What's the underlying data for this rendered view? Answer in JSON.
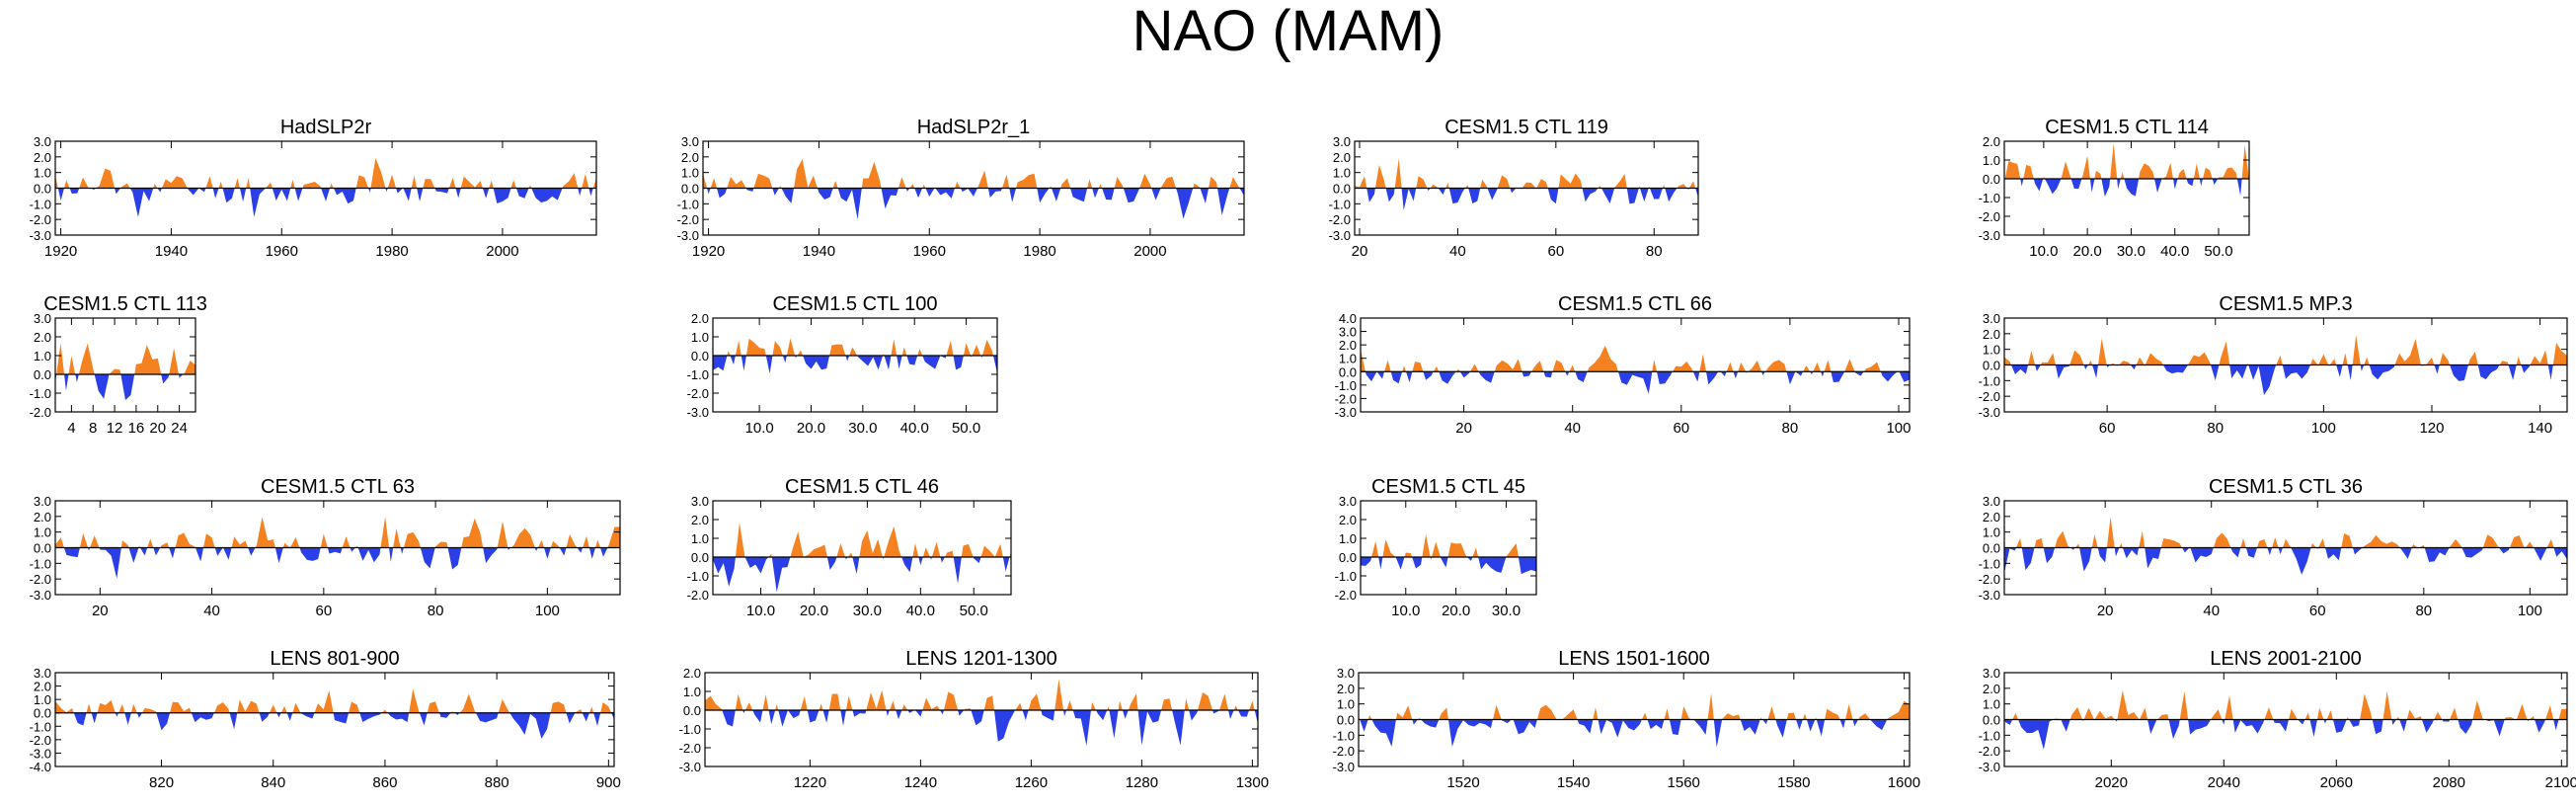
{
  "figure": {
    "title": "NAO (MAM)"
  },
  "colors": {
    "positive": "#f58220",
    "negative": "#2b3fe8",
    "axis": "#000000",
    "zero_line": "#000000"
  },
  "chart_data": [
    {
      "type": "area",
      "title": "HadSLP2r",
      "xlabel": "",
      "ylabel": "",
      "xlim": [
        1919,
        2017
      ],
      "ylim": [
        -3.0,
        3.0
      ],
      "xticks": [
        1920,
        1940,
        1960,
        1980,
        2000
      ],
      "xtick_labels": [
        "1920",
        "1940",
        "1960",
        "1980",
        "2000"
      ],
      "yticks": [
        -3.0,
        -2.0,
        -1.0,
        0.0,
        1.0,
        2.0,
        3.0
      ],
      "ytick_labels": [
        "-3.0",
        "-2.0",
        "-1.0",
        "0.0",
        "1.0",
        "2.0",
        "3.0"
      ],
      "seed": 11,
      "amplitude": 1.0
    },
    {
      "type": "area",
      "title": "HadSLP2r_1",
      "xlabel": "",
      "ylabel": "",
      "xlim": [
        1919,
        2017
      ],
      "ylim": [
        -3.0,
        3.0
      ],
      "xticks": [
        1920,
        1940,
        1960,
        1980,
        2000
      ],
      "xtick_labels": [
        "1920",
        "1940",
        "1960",
        "1980",
        "2000"
      ],
      "yticks": [
        -3.0,
        -2.0,
        -1.0,
        0.0,
        1.0,
        2.0,
        3.0
      ],
      "ytick_labels": [
        "-3.0",
        "-2.0",
        "-1.0",
        "0.0",
        "1.0",
        "2.0",
        "3.0"
      ],
      "seed": 12,
      "amplitude": 1.0
    },
    {
      "type": "area",
      "title": "CESM1.5 CTL 119",
      "xlabel": "",
      "ylabel": "",
      "xlim": [
        19,
        89
      ],
      "ylim": [
        -3.0,
        3.0
      ],
      "xticks": [
        20,
        40,
        60,
        80
      ],
      "xtick_labels": [
        "20",
        "40",
        "60",
        "80"
      ],
      "yticks": [
        -3.0,
        -2.0,
        -1.0,
        0.0,
        1.0,
        2.0,
        3.0
      ],
      "ytick_labels": [
        "-3.0",
        "-2.0",
        "-1.0",
        "0.0",
        "1.0",
        "2.0",
        "3.0"
      ],
      "seed": 13,
      "amplitude": 1.0
    },
    {
      "type": "area",
      "title": "CESM1.5 CTL 114",
      "xlabel": "",
      "ylabel": "",
      "xlim": [
        1,
        57
      ],
      "ylim": [
        -3.0,
        2.0
      ],
      "xticks": [
        10,
        20,
        30,
        40,
        50
      ],
      "xtick_labels": [
        "10.0",
        "20.0",
        "30.0",
        "40.0",
        "50.0"
      ],
      "yticks": [
        -3.0,
        -2.0,
        -1.0,
        0.0,
        1.0,
        2.0
      ],
      "ytick_labels": [
        "-3.0",
        "-2.0",
        "-1.0",
        "0.0",
        "1.0",
        "2.0"
      ],
      "seed": 14,
      "amplitude": 0.95
    },
    {
      "type": "area",
      "title": "CESM1.5 CTL 113",
      "xlabel": "",
      "ylabel": "",
      "xlim": [
        1,
        27
      ],
      "ylim": [
        -2.0,
        3.0
      ],
      "xticks": [
        4,
        8,
        12,
        16,
        20,
        24
      ],
      "xtick_labels": [
        "4",
        "8",
        "12",
        "16",
        "20",
        "24"
      ],
      "yticks": [
        -2.0,
        -1.0,
        0.0,
        1.0,
        2.0,
        3.0
      ],
      "ytick_labels": [
        "-2.0",
        "-1.0",
        "0.0",
        "1.0",
        "2.0",
        "3.0"
      ],
      "seed": 15,
      "amplitude": 0.9
    },
    {
      "type": "area",
      "title": "CESM1.5 CTL 100",
      "xlabel": "",
      "ylabel": "",
      "xlim": [
        1,
        56
      ],
      "ylim": [
        -3.0,
        2.0
      ],
      "xticks": [
        10,
        20,
        30,
        40,
        50
      ],
      "xtick_labels": [
        "10.0",
        "20.0",
        "30.0",
        "40.0",
        "50.0"
      ],
      "yticks": [
        -3.0,
        -2.0,
        -1.0,
        0.0,
        1.0,
        2.0
      ],
      "ytick_labels": [
        "-3.0",
        "-2.0",
        "-1.0",
        "0.0",
        "1.0",
        "2.0"
      ],
      "seed": 16,
      "amplitude": 0.95
    },
    {
      "type": "area",
      "title": "CESM1.5 CTL 66",
      "xlabel": "",
      "ylabel": "",
      "xlim": [
        1,
        102
      ],
      "ylim": [
        -3.0,
        4.0
      ],
      "xticks": [
        20,
        40,
        60,
        80,
        100
      ],
      "xtick_labels": [
        "20",
        "40",
        "60",
        "80",
        "100"
      ],
      "yticks": [
        -3.0,
        -2.0,
        -1.0,
        0.0,
        1.0,
        2.0,
        3.0,
        4.0
      ],
      "ytick_labels": [
        "-3.0",
        "-2.0",
        "-1.0",
        "0.0",
        "1.0",
        "2.0",
        "3.0",
        "4.0"
      ],
      "seed": 17,
      "amplitude": 1.0
    },
    {
      "type": "area",
      "title": "CESM1.5 MP.3",
      "xlabel": "",
      "ylabel": "",
      "xlim": [
        41,
        145
      ],
      "ylim": [
        -3.0,
        3.0
      ],
      "xticks": [
        60,
        80,
        100,
        120,
        140
      ],
      "xtick_labels": [
        "60",
        "80",
        "100",
        "120",
        "140"
      ],
      "yticks": [
        -3.0,
        -2.0,
        -1.0,
        0.0,
        1.0,
        2.0,
        3.0
      ],
      "ytick_labels": [
        "-3.0",
        "-2.0",
        "-1.0",
        "0.0",
        "1.0",
        "2.0",
        "3.0"
      ],
      "seed": 18,
      "amplitude": 1.0
    },
    {
      "type": "area",
      "title": "CESM1.5 CTL 63",
      "xlabel": "",
      "ylabel": "",
      "xlim": [
        12,
        113
      ],
      "ylim": [
        -3.0,
        3.0
      ],
      "xticks": [
        20,
        40,
        60,
        80,
        100
      ],
      "xtick_labels": [
        "20",
        "40",
        "60",
        "80",
        "100"
      ],
      "yticks": [
        -3.0,
        -2.0,
        -1.0,
        0.0,
        1.0,
        2.0,
        3.0
      ],
      "ytick_labels": [
        "-3.0",
        "-2.0",
        "-1.0",
        "0.0",
        "1.0",
        "2.0",
        "3.0"
      ],
      "seed": 19,
      "amplitude": 1.0
    },
    {
      "type": "area",
      "title": "CESM1.5 CTL 46",
      "xlabel": "",
      "ylabel": "",
      "xlim": [
        1,
        57
      ],
      "ylim": [
        -2.0,
        3.0
      ],
      "xticks": [
        10,
        20,
        30,
        40,
        50
      ],
      "xtick_labels": [
        "10.0",
        "20.0",
        "30.0",
        "40.0",
        "50.0"
      ],
      "yticks": [
        -2.0,
        -1.0,
        0.0,
        1.0,
        2.0,
        3.0
      ],
      "ytick_labels": [
        "-2.0",
        "-1.0",
        "0.0",
        "1.0",
        "2.0",
        "3.0"
      ],
      "seed": 20,
      "amplitude": 0.95
    },
    {
      "type": "area",
      "title": "CESM1.5 CTL 45",
      "xlabel": "",
      "ylabel": "",
      "xlim": [
        1,
        36
      ],
      "ylim": [
        -2.0,
        3.0
      ],
      "xticks": [
        10,
        20,
        30
      ],
      "xtick_labels": [
        "10.0",
        "20.0",
        "30.0"
      ],
      "yticks": [
        -2.0,
        -1.0,
        0.0,
        1.0,
        2.0,
        3.0
      ],
      "ytick_labels": [
        "-2.0",
        "-1.0",
        "0.0",
        "1.0",
        "2.0",
        "3.0"
      ],
      "seed": 21,
      "amplitude": 0.95
    },
    {
      "type": "area",
      "title": "CESM1.5 CTL 36",
      "xlabel": "",
      "ylabel": "",
      "xlim": [
        1,
        107
      ],
      "ylim": [
        -3.0,
        3.0
      ],
      "xticks": [
        20,
        40,
        60,
        80,
        100
      ],
      "xtick_labels": [
        "20",
        "40",
        "60",
        "80",
        "100"
      ],
      "yticks": [
        -3.0,
        -2.0,
        -1.0,
        0.0,
        1.0,
        2.0,
        3.0
      ],
      "ytick_labels": [
        "-3.0",
        "-2.0",
        "-1.0",
        "0.0",
        "1.0",
        "2.0",
        "3.0"
      ],
      "seed": 22,
      "amplitude": 1.0
    },
    {
      "type": "area",
      "title": "LENS 801-900",
      "xlabel": "",
      "ylabel": "",
      "xlim": [
        801,
        901
      ],
      "ylim": [
        -4.0,
        3.0
      ],
      "xticks": [
        820,
        840,
        860,
        880,
        900
      ],
      "xtick_labels": [
        "820",
        "840",
        "860",
        "880",
        "900"
      ],
      "yticks": [
        -4.0,
        -3.0,
        -2.0,
        -1.0,
        0.0,
        1.0,
        2.0,
        3.0
      ],
      "ytick_labels": [
        "-4.0",
        "-3.0",
        "-2.0",
        "-1.0",
        "0.0",
        "1.0",
        "2.0",
        "3.0"
      ],
      "seed": 23,
      "amplitude": 1.0
    },
    {
      "type": "area",
      "title": "LENS 1201-1300",
      "xlabel": "",
      "ylabel": "",
      "xlim": [
        1201,
        1301
      ],
      "ylim": [
        -3.0,
        2.0
      ],
      "xticks": [
        1220,
        1240,
        1260,
        1280,
        1300
      ],
      "xtick_labels": [
        "1220",
        "1240",
        "1260",
        "1280",
        "1300"
      ],
      "yticks": [
        -3.0,
        -2.0,
        -1.0,
        0.0,
        1.0,
        2.0
      ],
      "ytick_labels": [
        "-3.0",
        "-2.0",
        "-1.0",
        "0.0",
        "1.0",
        "2.0"
      ],
      "seed": 24,
      "amplitude": 0.95
    },
    {
      "type": "area",
      "title": "LENS 1501-1600",
      "xlabel": "",
      "ylabel": "",
      "xlim": [
        1501,
        1601
      ],
      "ylim": [
        -3.0,
        3.0
      ],
      "xticks": [
        1520,
        1540,
        1560,
        1580,
        1600
      ],
      "xtick_labels": [
        "1520",
        "1540",
        "1560",
        "1580",
        "1600"
      ],
      "yticks": [
        -3.0,
        -2.0,
        -1.0,
        0.0,
        1.0,
        2.0,
        3.0
      ],
      "ytick_labels": [
        "-3.0",
        "-2.0",
        "-1.0",
        "0.0",
        "1.0",
        "2.0",
        "3.0"
      ],
      "seed": 25,
      "amplitude": 1.0
    },
    {
      "type": "area",
      "title": "LENS 2001-2100",
      "xlabel": "",
      "ylabel": "",
      "xlim": [
        2001,
        2101
      ],
      "ylim": [
        -3.0,
        3.0
      ],
      "xticks": [
        2020,
        2040,
        2060,
        2080,
        2100
      ],
      "xtick_labels": [
        "2020",
        "2040",
        "2060",
        "2080",
        "2100"
      ],
      "yticks": [
        -3.0,
        -2.0,
        -1.0,
        0.0,
        1.0,
        2.0,
        3.0
      ],
      "ytick_labels": [
        "-3.0",
        "-2.0",
        "-1.0",
        "0.0",
        "1.0",
        "2.0",
        "3.0"
      ],
      "seed": 26,
      "amplitude": 1.0
    }
  ]
}
